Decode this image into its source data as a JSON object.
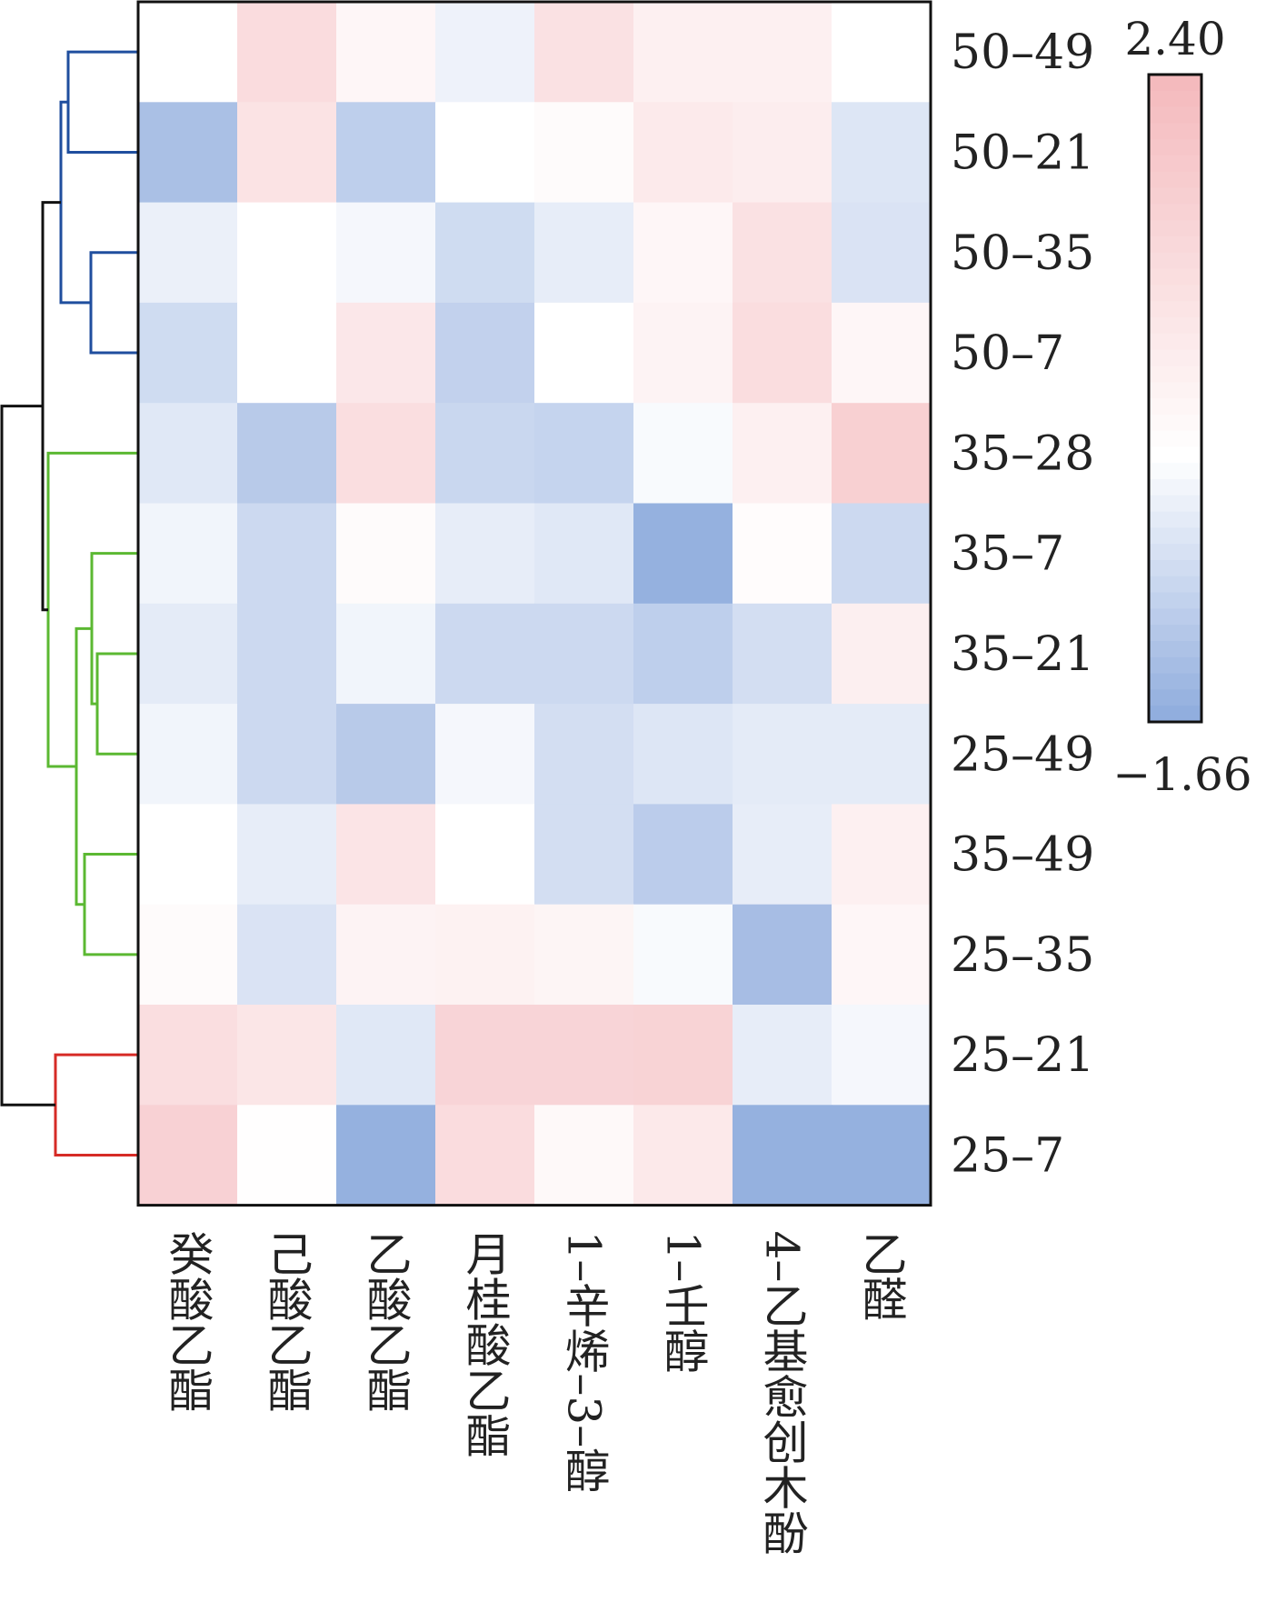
{
  "colors": {
    "high": "#f4b8bc",
    "mid": "#ffffff",
    "low": "#8eabdd",
    "dendrogram": {
      "cluster-blue": "#1f4e9e",
      "cluster-green": "#5bb832",
      "cluster-red": "#d62b26",
      "root": "#111111"
    }
  },
  "chart_data": {
    "type": "heatmap",
    "columns": [
      "癸酸乙酯",
      "己酸乙酯",
      "乙酸乙酯",
      "月桂酸乙酯",
      "1–辛烯–3–醇",
      "1–壬醇",
      "4–乙基愈创木酚",
      "乙醛"
    ],
    "rows": [
      "50–49",
      "50–21",
      "50–35",
      "50–7",
      "35–28",
      "35–7",
      "35–21",
      "25–49",
      "35–49",
      "25–35",
      "25–21",
      "25–7"
    ],
    "values": [
      [
        0.0,
        1.2,
        0.3,
        -0.25,
        1.0,
        0.5,
        0.5,
        0.0
      ],
      [
        -1.25,
        0.95,
        -0.95,
        0.0,
        0.15,
        0.7,
        0.6,
        -0.5
      ],
      [
        -0.3,
        0.0,
        -0.15,
        -0.7,
        -0.35,
        0.3,
        1.0,
        -0.55
      ],
      [
        -0.7,
        0.0,
        0.8,
        -0.9,
        0.0,
        0.4,
        1.15,
        0.3
      ],
      [
        -0.45,
        -1.05,
        1.1,
        -0.8,
        -0.85,
        -0.1,
        0.5,
        1.6
      ],
      [
        -0.2,
        -0.75,
        0.15,
        -0.35,
        -0.45,
        -1.55,
        0.1,
        -0.75
      ],
      [
        -0.4,
        -0.75,
        -0.2,
        -0.75,
        -0.75,
        -0.95,
        -0.65,
        0.55
      ],
      [
        -0.2,
        -0.75,
        -1.05,
        -0.15,
        -0.65,
        -0.5,
        -0.4,
        -0.4
      ],
      [
        0.0,
        -0.35,
        0.9,
        0.0,
        -0.65,
        -1.0,
        -0.35,
        0.5
      ],
      [
        0.15,
        -0.55,
        0.4,
        0.45,
        0.35,
        -0.1,
        -1.3,
        0.3
      ],
      [
        1.1,
        0.85,
        -0.45,
        1.45,
        1.45,
        1.5,
        -0.35,
        -0.15
      ],
      [
        1.55,
        0.05,
        -1.55,
        1.2,
        0.2,
        0.75,
        -1.55,
        -1.55
      ]
    ],
    "colorbar": {
      "max": 2.4,
      "min": -1.66,
      "max_label": "2.40",
      "min_label": "−1.66",
      "steps": 40
    },
    "dendrogram": {
      "clusters": [
        {
          "color": "cluster-blue",
          "rows": [
            "50–49",
            "50–21",
            "50–35",
            "50–7"
          ]
        },
        {
          "color": "cluster-green",
          "rows": [
            "35–28",
            "35–7",
            "35–21",
            "25–49",
            "35–49",
            "25–35"
          ]
        },
        {
          "color": "cluster-red",
          "rows": [
            "25–21",
            "25–7"
          ]
        }
      ]
    }
  }
}
